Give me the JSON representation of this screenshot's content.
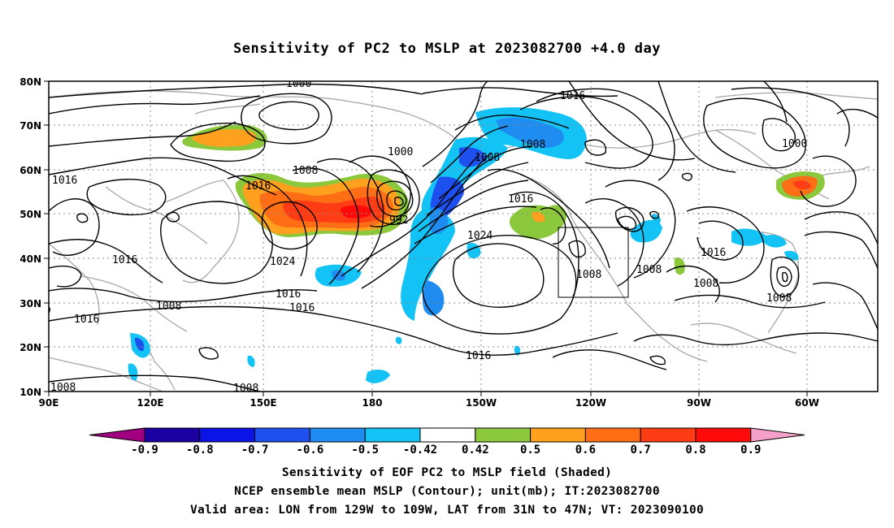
{
  "title": "Sensitivity of PC2 to MSLP at 2023082700 +4.0 day",
  "map": {
    "lat_labels": [
      "80N",
      "70N",
      "60N",
      "50N",
      "40N",
      "30N",
      "20N",
      "10N"
    ],
    "lon_labels": [
      "90E",
      "120E",
      "150E",
      "180",
      "150W",
      "120W",
      "90W",
      "60W"
    ],
    "valid_box": {
      "lon_from": "129W",
      "lon_to": "109W",
      "lat_from": "31N",
      "lat_to": "47N"
    },
    "contour_labels": [
      "1000",
      "1016",
      "1016",
      "1008",
      "1000",
      "1008",
      "1008",
      "1000",
      "1016",
      "1016",
      "992",
      "1024",
      "1016",
      "1024",
      "1016",
      "1016",
      "1008",
      "1008",
      "1016",
      "1008",
      "1008",
      "1008",
      "1016",
      "1016",
      "1008",
      "1008"
    ],
    "colors": {
      "land_outline": "#a8a8a8",
      "contour": "#000000",
      "grid": "#888888"
    }
  },
  "colorbar": {
    "labels": [
      "-0.9",
      "-0.8",
      "-0.7",
      "-0.6",
      "-0.5",
      "-0.42",
      "0.42",
      "0.5",
      "0.6",
      "0.7",
      "0.8",
      "0.9"
    ],
    "colors": [
      "#a0007f",
      "#1a00a0",
      "#0a14e6",
      "#1e50f0",
      "#1e8cf0",
      "#14c3f5",
      "#ffffff",
      "#8cc83c",
      "#ffa01e",
      "#ff6e14",
      "#ff3c14",
      "#ff0a0a",
      "#f5a0c8"
    ]
  },
  "footer": {
    "line1": "Sensitivity of EOF PC2 to MSLP field (Shaded)",
    "line2": "NCEP ensemble mean MSLP (Contour); unit(mb); IT:2023082700",
    "line3": "Valid area: LON from 129W to 109W, LAT from 31N to 47N; VT: 2023090100"
  }
}
